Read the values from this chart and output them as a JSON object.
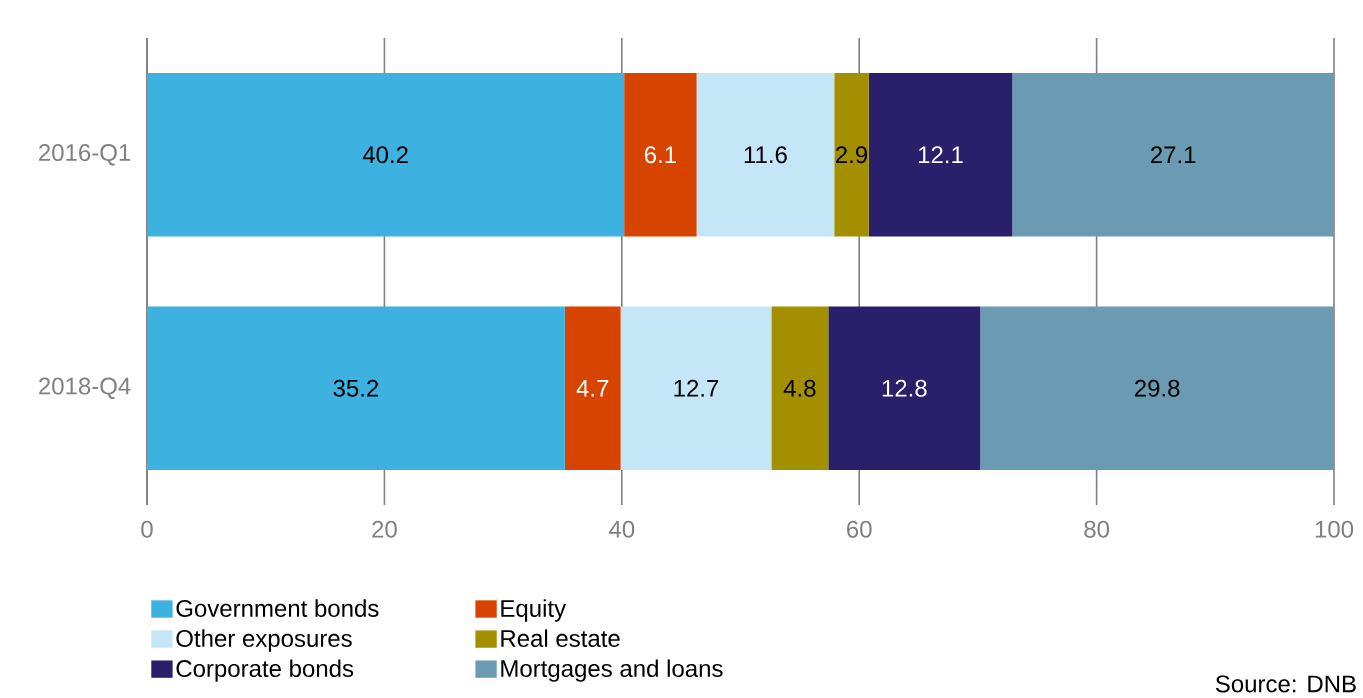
{
  "chart_data": {
    "type": "bar",
    "orientation": "horizontal",
    "stacked": true,
    "categories": [
      "2016-Q1",
      "2018-Q4"
    ],
    "series": [
      {
        "name": "Government bonds",
        "color": "#3db1e0",
        "values": [
          40.2,
          35.2
        ]
      },
      {
        "name": "Equity",
        "color": "#d64400",
        "values": [
          6.1,
          4.7
        ]
      },
      {
        "name": "Other exposures",
        "color": "#c5e6f7",
        "values": [
          11.6,
          12.7
        ]
      },
      {
        "name": "Real estate",
        "color": "#a38f00",
        "values": [
          2.9,
          4.8
        ]
      },
      {
        "name": "Corporate bonds",
        "color": "#2a1f6b",
        "values": [
          12.1,
          12.8
        ]
      },
      {
        "name": "Mortgages and loans",
        "color": "#6b9bb2",
        "values": [
          27.1,
          29.8
        ]
      }
    ],
    "xlim": [
      0,
      100
    ],
    "xticks": [
      0,
      20,
      40,
      60,
      80,
      100
    ],
    "grid": "x",
    "data_labels": true,
    "legend": "bottom",
    "annotations": [
      "Source: DNB"
    ]
  }
}
